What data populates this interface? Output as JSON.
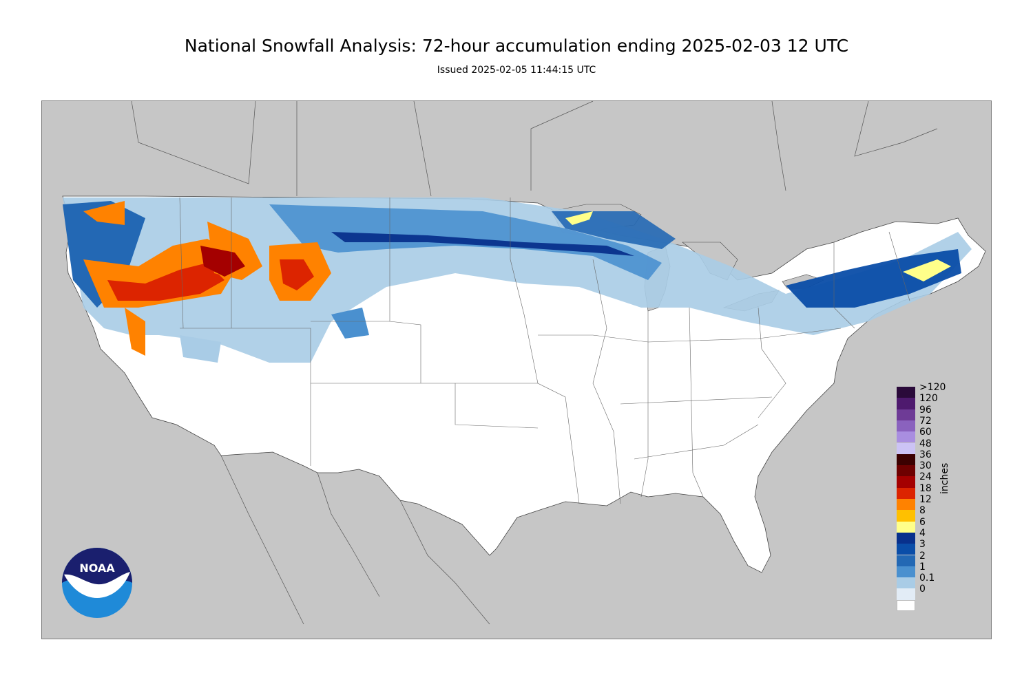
{
  "title": "National Snowfall Analysis: 72-hour accumulation ending 2025-02-03 12 UTC",
  "subtitle": "Issued 2025-02-05 11:44:15 UTC",
  "logo": {
    "text": "NOAA",
    "colors": {
      "dark": "#1a1f6e",
      "light": "#1f8ad8"
    }
  },
  "map": {
    "region": "Contiguous United States",
    "background_color": "#c6c6c6",
    "land_color": "#ffffff",
    "border_color": "#555555"
  },
  "legend": {
    "units": "inches",
    "bins": [
      {
        "label": ">120",
        "color": "#2a0a3a"
      },
      {
        "label": "120",
        "color": "#4e1a6e"
      },
      {
        "label": "96",
        "color": "#6e3b96"
      },
      {
        "label": "72",
        "color": "#8a62be"
      },
      {
        "label": "60",
        "color": "#a98ee0"
      },
      {
        "label": "48",
        "color": "#ccc3f5"
      },
      {
        "label": "36",
        "color": "#3b0000"
      },
      {
        "label": "30",
        "color": "#6e0000"
      },
      {
        "label": "24",
        "color": "#a40000"
      },
      {
        "label": "18",
        "color": "#dc2400"
      },
      {
        "label": "12",
        "color": "#ff8200"
      },
      {
        "label": "8",
        "color": "#ffc000"
      },
      {
        "label": "6",
        "color": "#ffff8a"
      },
      {
        "label": "4",
        "color": "#08308c"
      },
      {
        "label": "3",
        "color": "#0a4da8"
      },
      {
        "label": "2",
        "color": "#2368b4"
      },
      {
        "label": "1",
        "color": "#4a90cf"
      },
      {
        "label": "0.1",
        "color": "#a9cce6"
      },
      {
        "label": "0",
        "color": "#e2ecf6"
      },
      {
        "label": "",
        "color": "#ffffff"
      }
    ]
  }
}
